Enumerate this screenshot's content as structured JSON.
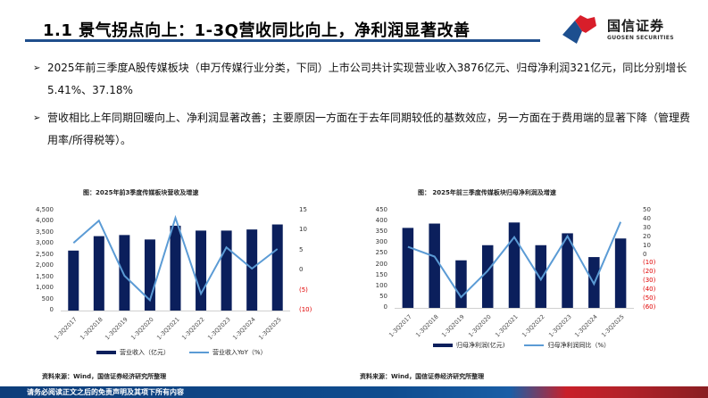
{
  "header": {
    "title": "1.1 景气拐点向上：1-3Q营收同比向上，净利润显著改善",
    "logo_cn": "国信证券",
    "logo_en": "GUOSEN SECURITIES",
    "accent_color": "#1f4e8c"
  },
  "bullets": [
    {
      "icon": "arrow-right-icon",
      "text": "2025年前三季度A股传媒板块（申万传媒行业分类，下同）上市公司共计实现营业收入3876亿元、归母净利润321亿元，同比分别增长5.41%、37.18%"
    },
    {
      "icon": "arrow-right-icon",
      "text": "营收相比上年同期回暖向上、净利润显著改善；主要原因一方面在于去年同期较低的基数效应，另一方面在于费用端的显著下降（管理费用率/所得税等）。"
    }
  ],
  "chart_data": [
    {
      "type": "bar",
      "title": "图：2025年前3季度传媒板块营收及增速",
      "categories": [
        "1-3Q2017",
        "1-3Q2018",
        "1-3Q2019",
        "1-3Q2020",
        "1-3Q2021",
        "1-3Q2022",
        "1-3Q2023",
        "1-3Q2024",
        "1-3Q2025"
      ],
      "series": [
        {
          "name": "营业收入（亿元）",
          "type": "bar",
          "axis": "left",
          "color": "#0b1f5c",
          "values": [
            2700,
            3350,
            3400,
            3200,
            3820,
            3600,
            3600,
            3650,
            3876
          ]
        },
        {
          "name": "营业收入YoY（%）",
          "type": "line",
          "axis": "right",
          "color": "#5b9bd5",
          "values": [
            6.9,
            12.5,
            -1.3,
            -7.4,
            13.2,
            -5.8,
            5.8,
            0.5,
            5.41
          ]
        }
      ],
      "left_axis": {
        "ticks": [
          "4,500",
          "4,000",
          "3,500",
          "3,000",
          "2,500",
          "2,000",
          "1,500",
          "1,000",
          "500",
          "0"
        ],
        "ylim": [
          0,
          4500
        ]
      },
      "right_axis": {
        "ticks": [
          "15",
          "10",
          "5",
          "0",
          "(5)",
          "(10)"
        ],
        "ylim": [
          -10,
          15
        ]
      },
      "legend_position": "bottom",
      "grid": false,
      "source": "资料来源：Wind，国信证券经济研究所整理"
    },
    {
      "type": "bar",
      "title": "图： 2025年前三季度传媒板块归母净利润及增速",
      "categories": [
        "1-3Q2017",
        "1-3Q2018",
        "1-3Q2019",
        "1-3Q2020",
        "1-3Q2021",
        "1-3Q2022",
        "1-3Q2023",
        "1-3Q2024",
        "1-3Q2025"
      ],
      "series": [
        {
          "name": "归母净利润(亿元)",
          "type": "bar",
          "axis": "left",
          "color": "#0b1f5c",
          "values": [
            370,
            390,
            220,
            290,
            395,
            290,
            345,
            235,
            321
          ]
        },
        {
          "name": "归母净利润同比（%）",
          "type": "line",
          "axis": "right",
          "color": "#5b9bd5",
          "values": [
            9,
            -2,
            -48,
            -18,
            20,
            -28,
            21,
            -33,
            37.18
          ]
        }
      ],
      "left_axis": {
        "ticks": [
          "450",
          "400",
          "350",
          "300",
          "250",
          "200",
          "150",
          "100",
          "50",
          "0"
        ],
        "ylim": [
          0,
          450
        ]
      },
      "right_axis": {
        "ticks": [
          "50",
          "40",
          "30",
          "20",
          "10",
          "0",
          "(10)",
          "(20)",
          "(30)",
          "(40)",
          "(50)",
          "(60)"
        ],
        "ylim": [
          -60,
          50
        ]
      },
      "legend_position": "bottom",
      "grid": false,
      "source": "资料来源：Wind，国信证券经济研究所整理"
    }
  ],
  "footer": {
    "disclaimer": "请务必阅读正文之后的免责声明及其项下所有内容"
  }
}
